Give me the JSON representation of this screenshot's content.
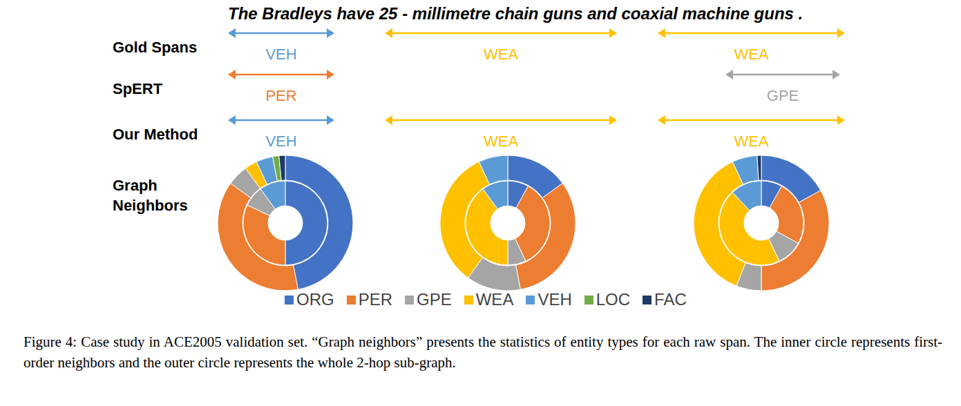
{
  "sentence": "The Bradleys have 25 - millimetre chain guns and coaxial machine guns .",
  "annotation_rows": [
    {
      "label": "Gold Spans",
      "spans": [
        {
          "type": "VEH"
        },
        {
          "type": "WEA"
        },
        {
          "type": "WEA"
        }
      ]
    },
    {
      "label": "SpERT",
      "spans": [
        {
          "type": "PER"
        },
        {
          "type": "GPE"
        }
      ]
    },
    {
      "label": "Our Method",
      "spans": [
        {
          "type": "VEH"
        },
        {
          "type": "WEA"
        },
        {
          "type": "WEA"
        }
      ]
    }
  ],
  "graph_row_label": "Graph Neighbors",
  "type_colors": {
    "ORG": "#4472c4",
    "PER": "#ed7d31",
    "GPE": "#a5a5a5",
    "WEA": "#ffc000",
    "VEH": "#5b9bd5",
    "LOC": "#70ad47",
    "FAC": "#203864"
  },
  "legend": [
    "ORG",
    "PER",
    "GPE",
    "WEA",
    "VEH",
    "LOC",
    "FAC"
  ],
  "chart_data": [
    {
      "type": "pie",
      "categories": [
        "ORG",
        "PER",
        "GPE",
        "WEA",
        "VEH",
        "LOC",
        "FAC"
      ],
      "colors": [
        "#4472c4",
        "#ed7d31",
        "#a5a5a5",
        "#ffc000",
        "#5b9bd5",
        "#70ad47",
        "#203864"
      ],
      "series": [
        {
          "values": [
            50,
            32,
            8,
            0,
            10,
            0,
            0
          ]
        },
        {
          "values": [
            47,
            38,
            5,
            3,
            4,
            1.5,
            1.5
          ]
        }
      ]
    },
    {
      "type": "pie",
      "categories": [
        "ORG",
        "PER",
        "GPE",
        "WEA",
        "VEH",
        "LOC",
        "FAC"
      ],
      "colors": [
        "#4472c4",
        "#ed7d31",
        "#a5a5a5",
        "#ffc000",
        "#5b9bd5",
        "#70ad47",
        "#203864"
      ],
      "series": [
        {
          "values": [
            8,
            35,
            7,
            40,
            10,
            0,
            0
          ]
        },
        {
          "values": [
            15,
            32,
            13,
            33,
            7,
            0,
            0
          ]
        }
      ]
    },
    {
      "type": "pie",
      "categories": [
        "ORG",
        "PER",
        "GPE",
        "WEA",
        "VEH",
        "LOC",
        "FAC"
      ],
      "colors": [
        "#4472c4",
        "#ed7d31",
        "#a5a5a5",
        "#ffc000",
        "#5b9bd5",
        "#70ad47",
        "#203864"
      ],
      "series": [
        {
          "values": [
            8,
            25,
            10,
            45,
            12,
            0,
            0
          ]
        },
        {
          "values": [
            17,
            33,
            6,
            37,
            6,
            0,
            1
          ]
        }
      ]
    }
  ],
  "caption": "Figure 4: Case study in ACE2005 validation set. “Graph neighbors” presents the statistics of entity types for each raw span. The inner circle represents first-order neighbors and the outer circle represents the whole 2-hop sub-graph."
}
